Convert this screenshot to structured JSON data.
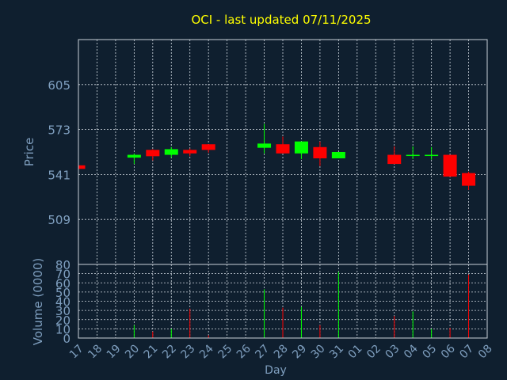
{
  "chart_data": {
    "type": "candlestick",
    "title": "OCI - last updated 07/11/2025",
    "ylabel": "Price",
    "volume_ylabel": "Volume (0000)",
    "xlabel": "Day",
    "price_ylim": [
      477,
      637
    ],
    "price_ticks": [
      605,
      573,
      541,
      509
    ],
    "volume_ylim": [
      0,
      80
    ],
    "volume_ticks": [
      80,
      70,
      60,
      50,
      40,
      30,
      20,
      10,
      0
    ],
    "x_ticks": [
      "17",
      "18",
      "19",
      "20",
      "21",
      "22",
      "23",
      "24",
      "25",
      "26",
      "27",
      "28",
      "29",
      "30",
      "31",
      "01",
      "02",
      "03",
      "04",
      "05",
      "06",
      "07",
      "08"
    ],
    "grid": true,
    "colors": {
      "up": "#00ff00",
      "down": "#ff0000",
      "title": "#ffff00",
      "axis": "#7f9fbf",
      "background": "#0f1f2f"
    },
    "candles": [
      {
        "day": "17",
        "open": 547.5,
        "close": 545.0,
        "high": 547.5,
        "low": 545.0,
        "volume": 0
      },
      {
        "day": "20",
        "open": 553.0,
        "close": 555.0,
        "high": 556.0,
        "low": 548.5,
        "volume": 14
      },
      {
        "day": "21",
        "open": 558.5,
        "close": 554.0,
        "high": 559.0,
        "low": 551.0,
        "volume": 7
      },
      {
        "day": "22",
        "open": 555.0,
        "close": 559.0,
        "high": 560.5,
        "low": 553.0,
        "volume": 10
      },
      {
        "day": "23",
        "open": 558.5,
        "close": 556.0,
        "high": 559.5,
        "low": 554.0,
        "volume": 32
      },
      {
        "day": "24",
        "open": 562.5,
        "close": 558.5,
        "high": 562.5,
        "low": 556.5,
        "volume": 3
      },
      {
        "day": "27",
        "open": 560.0,
        "close": 563.0,
        "high": 577.0,
        "low": 556.0,
        "volume": 53
      },
      {
        "day": "28",
        "open": 562.5,
        "close": 556.0,
        "high": 568.0,
        "low": 556.0,
        "volume": 33
      },
      {
        "day": "29",
        "open": 556.0,
        "close": 564.5,
        "high": 564.5,
        "low": 552.0,
        "volume": 34
      },
      {
        "day": "30",
        "open": 560.5,
        "close": 552.5,
        "high": 564.5,
        "low": 547.0,
        "volume": 14
      },
      {
        "day": "31",
        "open": 552.5,
        "close": 557.0,
        "high": 557.0,
        "low": 552.5,
        "volume": 72
      },
      {
        "day": "03",
        "open": 555.0,
        "close": 548.5,
        "high": 561.0,
        "low": 548.5,
        "volume": 24
      },
      {
        "day": "04",
        "open": 554.5,
        "close": 555.0,
        "high": 561.0,
        "low": 552.0,
        "volume": 29
      },
      {
        "day": "05",
        "open": 554.5,
        "close": 555.0,
        "high": 560.5,
        "low": 551.5,
        "volume": 10
      },
      {
        "day": "06",
        "open": 555.0,
        "close": 539.5,
        "high": 555.0,
        "low": 539.5,
        "volume": 11
      },
      {
        "day": "07",
        "open": 542.0,
        "close": 533.0,
        "high": 543.0,
        "low": 530.0,
        "volume": 69
      }
    ]
  }
}
